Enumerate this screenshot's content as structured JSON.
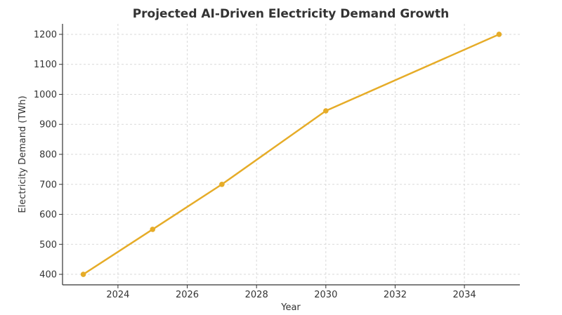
{
  "chart_data": {
    "type": "line",
    "title": "Projected AI-Driven Electricity Demand Growth",
    "xlabel": "Year",
    "ylabel": "Electricity Demand (TWh)",
    "xlim": [
      2022.4,
      2035.6
    ],
    "ylim": [
      365,
      1235
    ],
    "x_ticks": [
      2024,
      2026,
      2028,
      2030,
      2032,
      2034
    ],
    "y_ticks": [
      400,
      500,
      600,
      700,
      800,
      900,
      1000,
      1100,
      1200
    ],
    "grid": true,
    "series": [
      {
        "color": "#e6ac28",
        "x": [
          2023,
          2025,
          2027,
          2030,
          2035
        ],
        "y": [
          400,
          550,
          700,
          945,
          1200
        ]
      }
    ]
  }
}
